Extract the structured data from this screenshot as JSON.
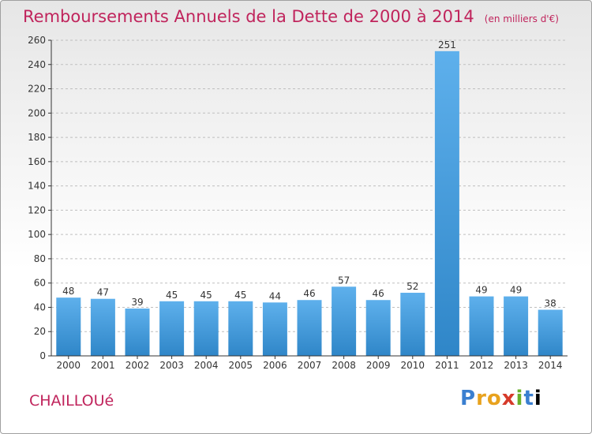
{
  "header": {
    "title": "Remboursements Annuels de la Dette de 2000 à 2014",
    "unit": "(en milliers d'€)"
  },
  "footer": {
    "commune": "CHAILLOUé",
    "brand": "Proxiti"
  },
  "colors": {
    "title": "#c0245c",
    "bar_light": "#5eb0ec",
    "bar_dark": "#2f86c8",
    "grid": "#bfbfbf",
    "axis": "#333333"
  },
  "chart_data": {
    "type": "bar",
    "title": "Remboursements Annuels de la Dette de 2000 à 2014",
    "xlabel": "",
    "ylabel": "",
    "categories": [
      "2000",
      "2001",
      "2002",
      "2003",
      "2004",
      "2005",
      "2006",
      "2007",
      "2008",
      "2009",
      "2010",
      "2011",
      "2012",
      "2013",
      "2014"
    ],
    "values": [
      48,
      47,
      39,
      45,
      45,
      45,
      44,
      46,
      57,
      46,
      52,
      251,
      49,
      49,
      38
    ],
    "ylim": [
      0,
      260
    ],
    "yticks": [
      0,
      20,
      40,
      60,
      80,
      100,
      120,
      140,
      160,
      180,
      200,
      220,
      240,
      260
    ],
    "grid": true,
    "data_labels": true
  }
}
